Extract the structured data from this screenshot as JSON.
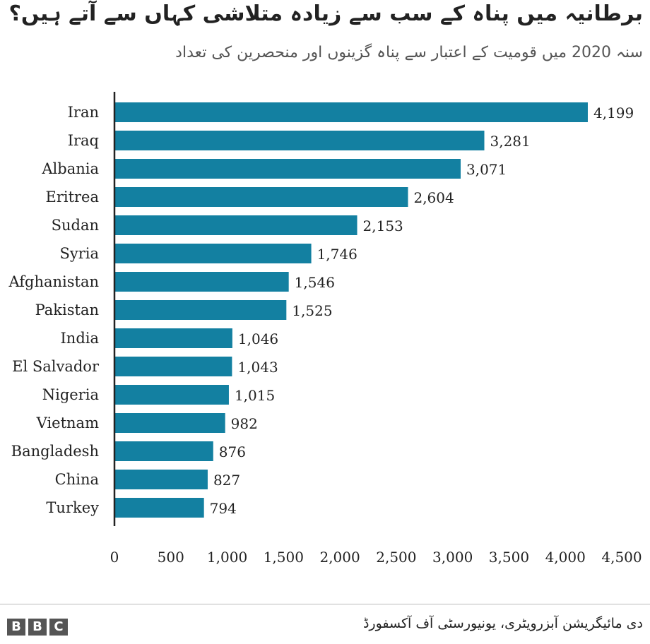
{
  "chart_data": {
    "type": "bar",
    "orientation": "horizontal",
    "title": "برطانیہ میں پناہ کے سب سے زیادہ متلاشی کہاں سے آتے ہیں؟",
    "subtitle": "سنہ 2020 میں قومیت کے اعتبار سے پناہ گزینوں اور منحصرین کی تعداد",
    "categories": [
      "Iran",
      "Iraq",
      "Albania",
      "Eritrea",
      "Sudan",
      "Syria",
      "Afghanistan",
      "Pakistan",
      "India",
      "El Salvador",
      "Nigeria",
      "Vietnam",
      "Bangladesh",
      "China",
      "Turkey"
    ],
    "values": [
      4199,
      3281,
      3071,
      2604,
      2153,
      1746,
      1546,
      1525,
      1046,
      1043,
      1015,
      982,
      876,
      827,
      794
    ],
    "value_labels": [
      "4,199",
      "3,281",
      "3,071",
      "2,604",
      "2,153",
      "1,746",
      "1,546",
      "1,525",
      "1,046",
      "1,043",
      "1,015",
      "982",
      "876",
      "827",
      "794"
    ],
    "xlim": [
      0,
      4500
    ],
    "x_ticks": [
      0,
      500,
      1000,
      1500,
      2000,
      2500,
      3000,
      3500,
      4000,
      4500
    ],
    "x_tick_labels": [
      "0",
      "500",
      "1,000",
      "1,500",
      "2,000",
      "2,500",
      "3,000",
      "3,500",
      "4,000",
      "4,500"
    ],
    "xlabel": "",
    "ylabel": "",
    "grid": false,
    "bar_color": "#1380a1"
  },
  "footer": {
    "source": "دی مائیگریشن آبزرویٹری، یونیورسٹی آف آکسفورڈ",
    "logo_letters": [
      "B",
      "B",
      "C"
    ]
  }
}
